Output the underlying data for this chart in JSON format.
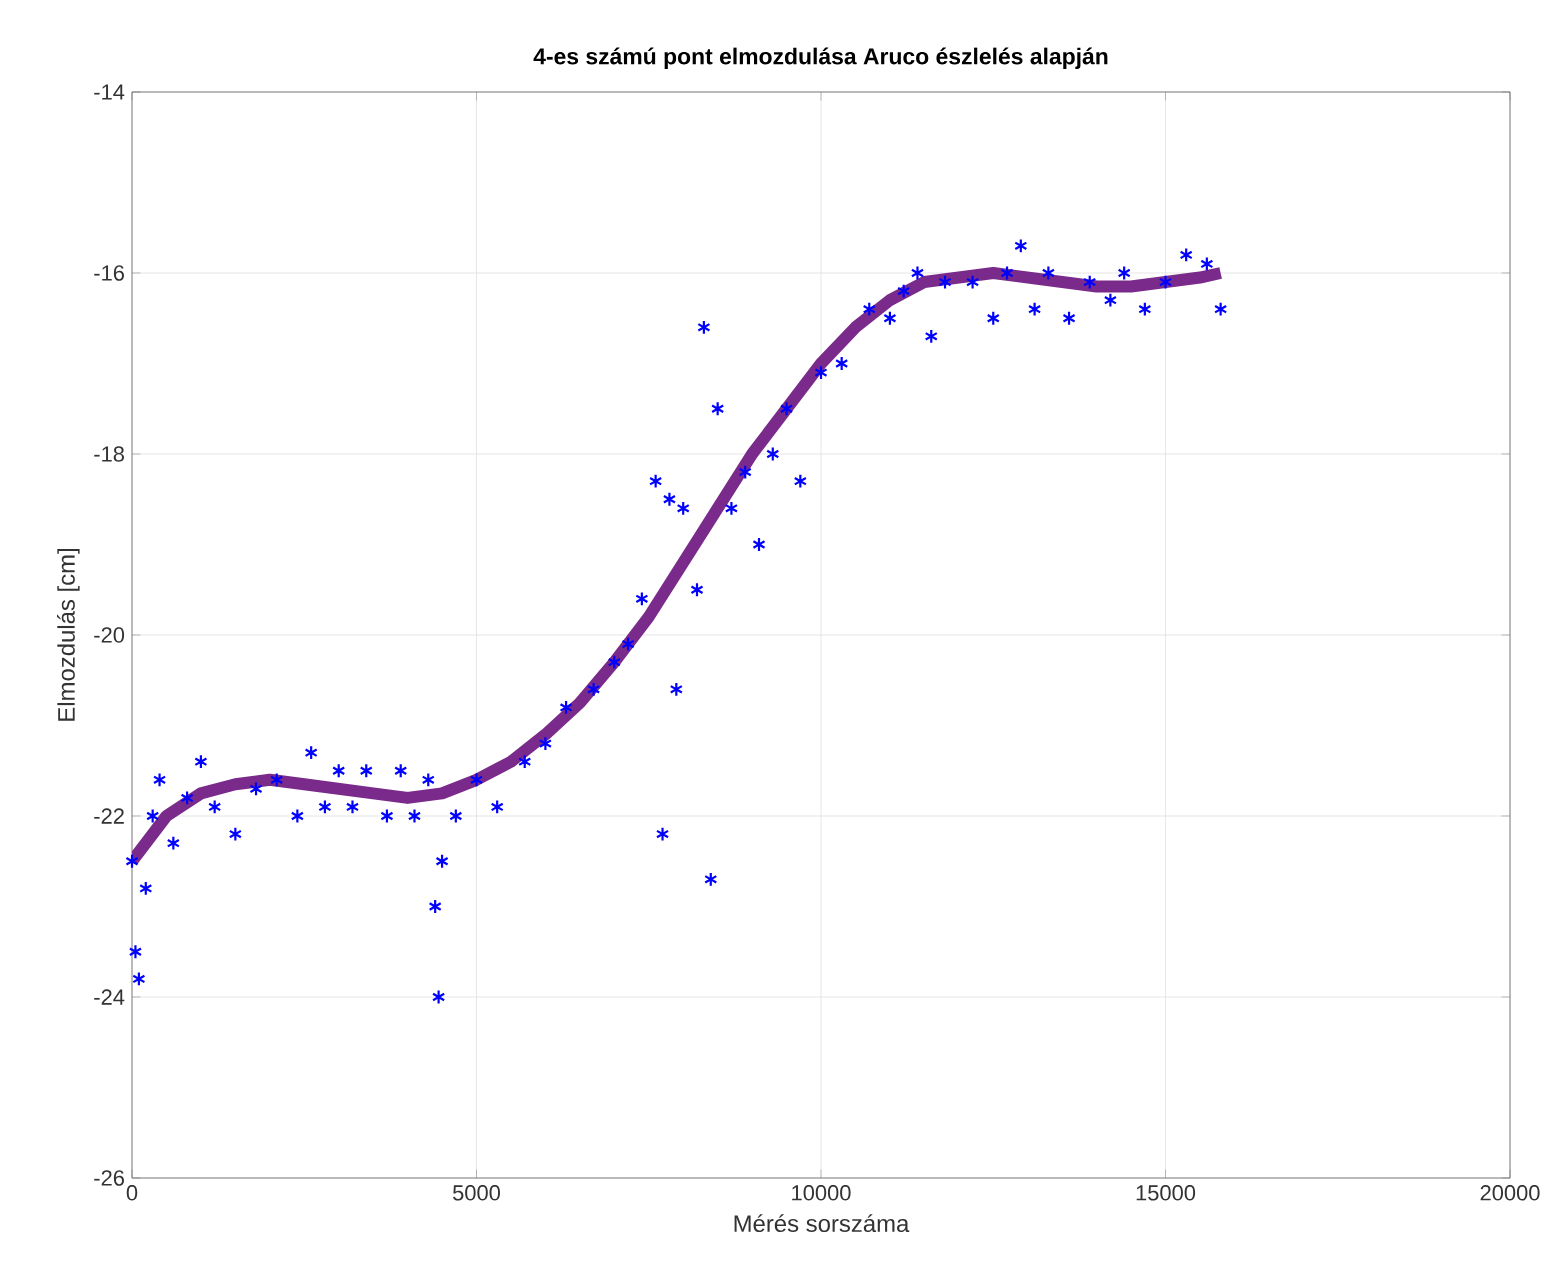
{
  "chart_data": {
    "type": "scatter",
    "title": "4-es számú pont elmozdulása Aruco észlelés alapján",
    "xlabel": "Mérés sorszáma",
    "ylabel": "Elmozdulás [cm]",
    "xlim": [
      0,
      20000
    ],
    "ylim": [
      -26,
      -14
    ],
    "xticks": [
      0,
      5000,
      10000,
      15000,
      20000
    ],
    "yticks": [
      -26,
      -24,
      -22,
      -20,
      -18,
      -16,
      -14
    ],
    "grid": true,
    "series": [
      {
        "marker": "cross",
        "color": "#0000ff",
        "x": [
          0,
          50,
          100,
          200,
          300,
          400,
          600,
          800,
          1000,
          1200,
          1500,
          1800,
          2100,
          2400,
          2600,
          2800,
          3000,
          3200,
          3400,
          3700,
          3900,
          4100,
          4300,
          4400,
          4450,
          4500,
          4700,
          5000,
          5300,
          5700,
          6000,
          6300,
          6700,
          7000,
          7200,
          7400,
          7600,
          7700,
          7800,
          7900,
          8000,
          8200,
          8300,
          8400,
          8500,
          8700,
          8900,
          9100,
          9300,
          9500,
          9700,
          10000,
          10300,
          10700,
          11000,
          11200,
          11400,
          11600,
          11800,
          12200,
          12500,
          12700,
          12900,
          13100,
          13300,
          13600,
          13900,
          14200,
          14400,
          14700,
          15000,
          15300,
          15600,
          15800
        ],
        "values": [
          -22.5,
          -23.5,
          -23.8,
          -22.8,
          -22.0,
          -21.6,
          -22.3,
          -21.8,
          -21.4,
          -21.9,
          -22.2,
          -21.7,
          -21.6,
          -22.0,
          -21.3,
          -21.9,
          -21.5,
          -21.9,
          -21.5,
          -22.0,
          -21.5,
          -22.0,
          -21.6,
          -23.0,
          -24.0,
          -22.5,
          -22.0,
          -21.6,
          -21.9,
          -21.4,
          -21.2,
          -20.8,
          -20.6,
          -20.3,
          -20.1,
          -19.6,
          -18.3,
          -22.2,
          -18.5,
          -20.6,
          -18.6,
          -19.5,
          -16.6,
          -22.7,
          -17.5,
          -18.6,
          -18.2,
          -19.0,
          -18.0,
          -17.5,
          -18.3,
          -17.1,
          -17.0,
          -16.4,
          -16.5,
          -16.2,
          -16.0,
          -16.7,
          -16.1,
          -16.1,
          -16.5,
          -16.0,
          -15.7,
          -16.4,
          -16.0,
          -16.5,
          -16.1,
          -16.3,
          -16.0,
          -16.4,
          -16.1,
          -15.8,
          -15.9,
          -16.4
        ]
      },
      {
        "type": "line",
        "marker": "none",
        "color": "#7a2a8a",
        "x": [
          0,
          500,
          1000,
          1500,
          2000,
          2500,
          3000,
          3500,
          4000,
          4500,
          5000,
          5500,
          6000,
          6500,
          7000,
          7500,
          8000,
          8500,
          9000,
          9500,
          10000,
          10500,
          11000,
          11500,
          12000,
          12500,
          13000,
          13500,
          14000,
          14500,
          15000,
          15500,
          15800
        ],
        "values": [
          -22.5,
          -22.0,
          -21.75,
          -21.65,
          -21.6,
          -21.65,
          -21.7,
          -21.75,
          -21.8,
          -21.75,
          -21.6,
          -21.4,
          -21.1,
          -20.75,
          -20.3,
          -19.8,
          -19.2,
          -18.6,
          -18.0,
          -17.5,
          -17.0,
          -16.6,
          -16.3,
          -16.1,
          -16.05,
          -16.0,
          -16.05,
          -16.1,
          -16.15,
          -16.15,
          -16.1,
          -16.05,
          -16.0
        ]
      }
    ]
  }
}
